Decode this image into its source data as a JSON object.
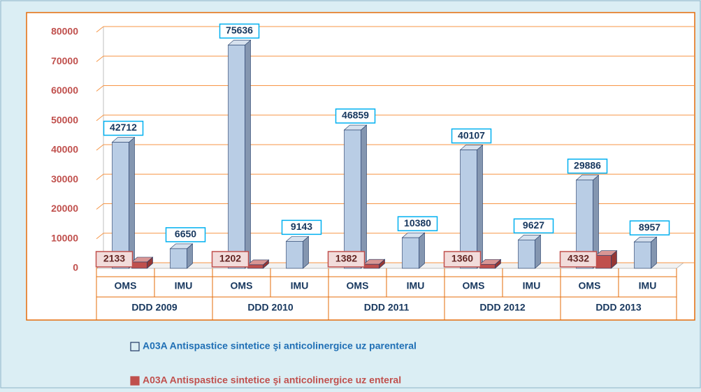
{
  "chart_data": {
    "type": "bar3d",
    "categories": [
      "OMS",
      "IMU",
      "OMS",
      "IMU",
      "OMS",
      "IMU",
      "OMS",
      "IMU",
      "OMS",
      "IMU"
    ],
    "groups": [
      "DDD 2009",
      "DDD 2010",
      "DDD 2011",
      "DDD 2012",
      "DDD 2013"
    ],
    "series": [
      {
        "name": "A03A Antispastice sintetice şi anticolinergice uz parenteral",
        "color": "#b9cde5",
        "values": [
          42712,
          6650,
          75636,
          9143,
          46859,
          10380,
          40107,
          9627,
          29886,
          8957
        ]
      },
      {
        "name": "A03A Antispastice sintetice şi anticolinergice uz enteral",
        "color": "#c0504d",
        "values": [
          2133,
          null,
          1202,
          null,
          1382,
          null,
          1360,
          null,
          4332,
          null
        ]
      }
    ],
    "ylim": [
      0,
      80000
    ],
    "yticks": [
      0,
      10000,
      20000,
      30000,
      40000,
      50000,
      60000,
      70000,
      80000
    ],
    "grid": true,
    "legend": "bottom"
  }
}
